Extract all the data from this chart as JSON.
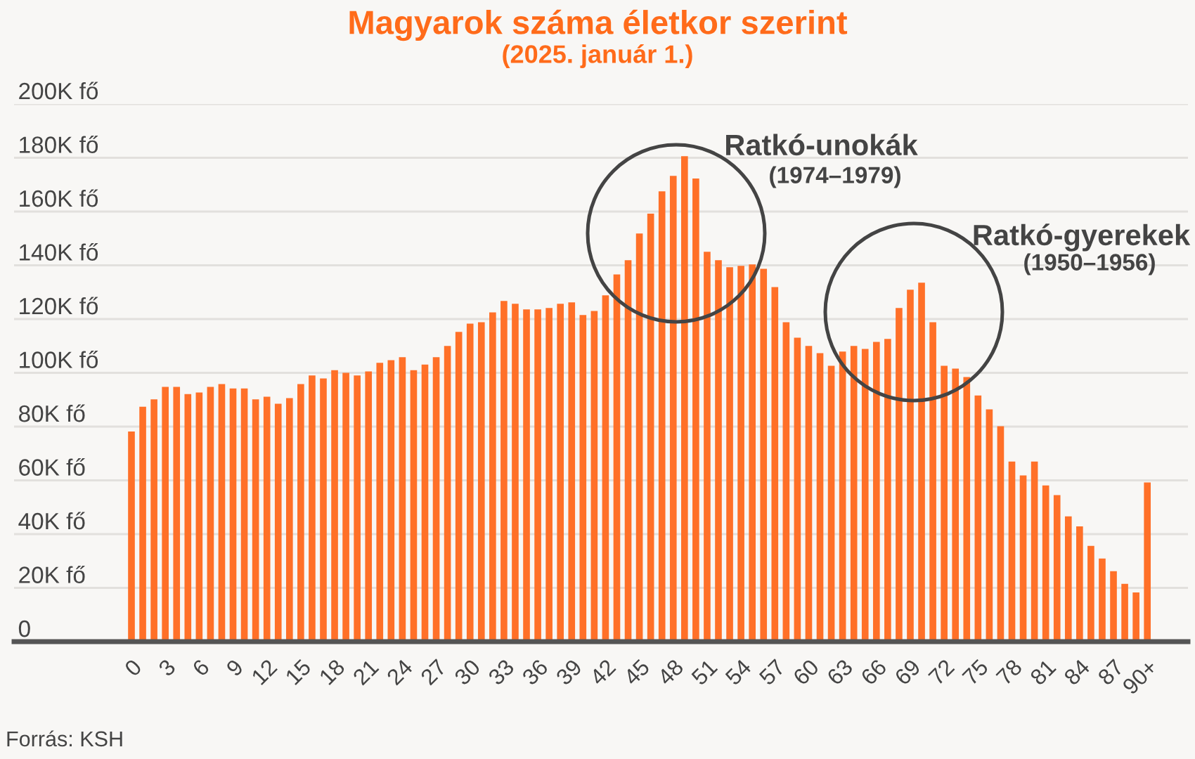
{
  "chart_data": {
    "type": "bar",
    "title": "Magyarok száma életkor szerint",
    "subtitle": "(2025. január 1.)",
    "categories": [
      "0",
      null,
      null,
      "3",
      null,
      null,
      "6",
      null,
      null,
      "9",
      null,
      null,
      "12",
      null,
      null,
      "15",
      null,
      null,
      "18",
      null,
      null,
      "21",
      null,
      null,
      "24",
      null,
      null,
      "27",
      null,
      null,
      "30",
      null,
      null,
      "33",
      null,
      null,
      "36",
      null,
      null,
      "39",
      null,
      null,
      "42",
      null,
      null,
      "45",
      null,
      null,
      "48",
      null,
      null,
      "51",
      null,
      null,
      "54",
      null,
      null,
      "57",
      null,
      null,
      "60",
      null,
      null,
      "63",
      null,
      null,
      "66",
      null,
      null,
      "69",
      null,
      null,
      "72",
      null,
      null,
      "75",
      null,
      null,
      "78",
      null,
      null,
      "81",
      null,
      null,
      "84",
      null,
      null,
      "87",
      null,
      null,
      "90+"
    ],
    "values": [
      78200,
      87400,
      90100,
      94800,
      94800,
      92100,
      92700,
      94800,
      95800,
      94200,
      94200,
      90100,
      91100,
      88500,
      90600,
      95800,
      99000,
      97900,
      101000,
      100000,
      99000,
      100500,
      103700,
      104700,
      105800,
      101000,
      103100,
      105800,
      110000,
      115200,
      118300,
      118800,
      122500,
      126700,
      125700,
      123600,
      123600,
      124100,
      125700,
      126200,
      121500,
      123000,
      128800,
      136600,
      141900,
      151800,
      159200,
      167500,
      173300,
      180600,
      172300,
      145000,
      141900,
      139300,
      139800,
      140300,
      138700,
      131900,
      118800,
      113100,
      110000,
      107300,
      102600,
      107900,
      110000,
      108900,
      111500,
      112600,
      124100,
      130900,
      133500,
      118800,
      102600,
      101600,
      98400,
      91600,
      86400,
      80100,
      67000,
      61800,
      67000,
      58100,
      54500,
      46600,
      42900,
      35600,
      30900,
      26200,
      21500,
      18300,
      59200
    ],
    "color": "#ff7028",
    "ylim": [
      0,
      200000
    ],
    "yticks": [
      {
        "value": 0,
        "label": "0"
      },
      {
        "value": 20000,
        "label": "20K fő"
      },
      {
        "value": 40000,
        "label": "40K fő"
      },
      {
        "value": 60000,
        "label": "60K fő"
      },
      {
        "value": 80000,
        "label": "80K fő"
      },
      {
        "value": 100000,
        "label": "100K fő"
      },
      {
        "value": 120000,
        "label": "120K fő"
      },
      {
        "value": 140000,
        "label": "140K fő"
      },
      {
        "value": 160000,
        "label": "160K fő"
      },
      {
        "value": 180000,
        "label": "180K fő"
      },
      {
        "value": 200000,
        "label": "200K fő"
      }
    ],
    "grid": "y",
    "annotations": [
      "Ratkó-unokák",
      "(1974–1979)",
      "Ratkó-gyerekek",
      "(1950–1956)",
      "Forrás: KSH"
    ]
  }
}
